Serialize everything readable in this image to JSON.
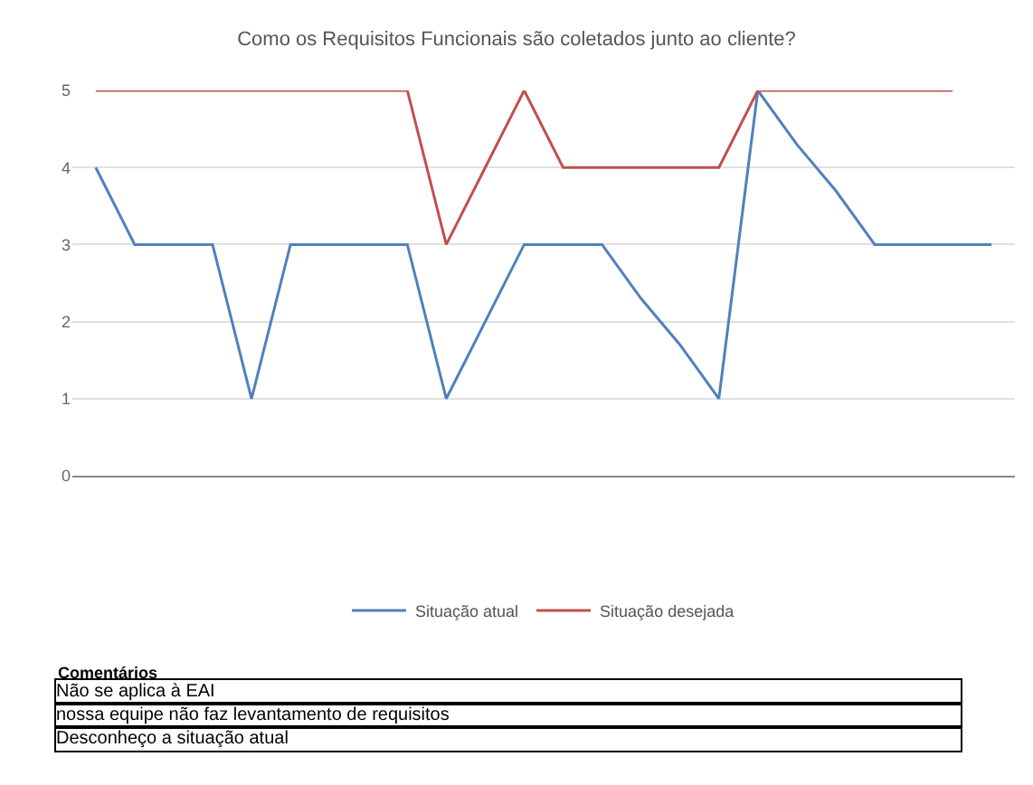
{
  "chart_data": {
    "type": "line",
    "title": "Como os Requisitos Funcionais são coletados junto ao cliente?",
    "categories": [
      null,
      null,
      null,
      null,
      null,
      null,
      null,
      null,
      null,
      null,
      null,
      null,
      null,
      null,
      null,
      null,
      null,
      null,
      null,
      null,
      null,
      null,
      null,
      null
    ],
    "series": [
      {
        "name": "Situação atual",
        "color": "#4f81bd",
        "values": [
          4,
          3,
          3,
          3,
          1,
          3,
          3,
          3,
          3,
          1,
          2,
          3,
          3,
          3,
          2.3,
          1.7,
          1,
          5,
          4.3,
          3.7,
          3,
          3,
          3,
          3
        ]
      },
      {
        "name": "Situação desejada",
        "color": "#c0504d",
        "values": [
          5,
          5,
          5,
          5,
          5,
          5,
          5,
          5,
          5,
          3,
          4,
          5,
          4,
          4,
          4,
          4,
          4,
          5,
          5,
          5,
          5,
          5,
          5,
          null
        ]
      }
    ],
    "ylim": [
      0,
      5
    ],
    "yticks": [
      0,
      1,
      2,
      3,
      4,
      5
    ],
    "grid": "y",
    "legend": "bottom",
    "marker": "none",
    "line_style": "solid",
    "annotations": [
      "Comentários",
      "Não se aplica à EAI",
      "nossa equipe não faz levantamento de requisitos",
      "Desconheço a situação atual"
    ]
  }
}
